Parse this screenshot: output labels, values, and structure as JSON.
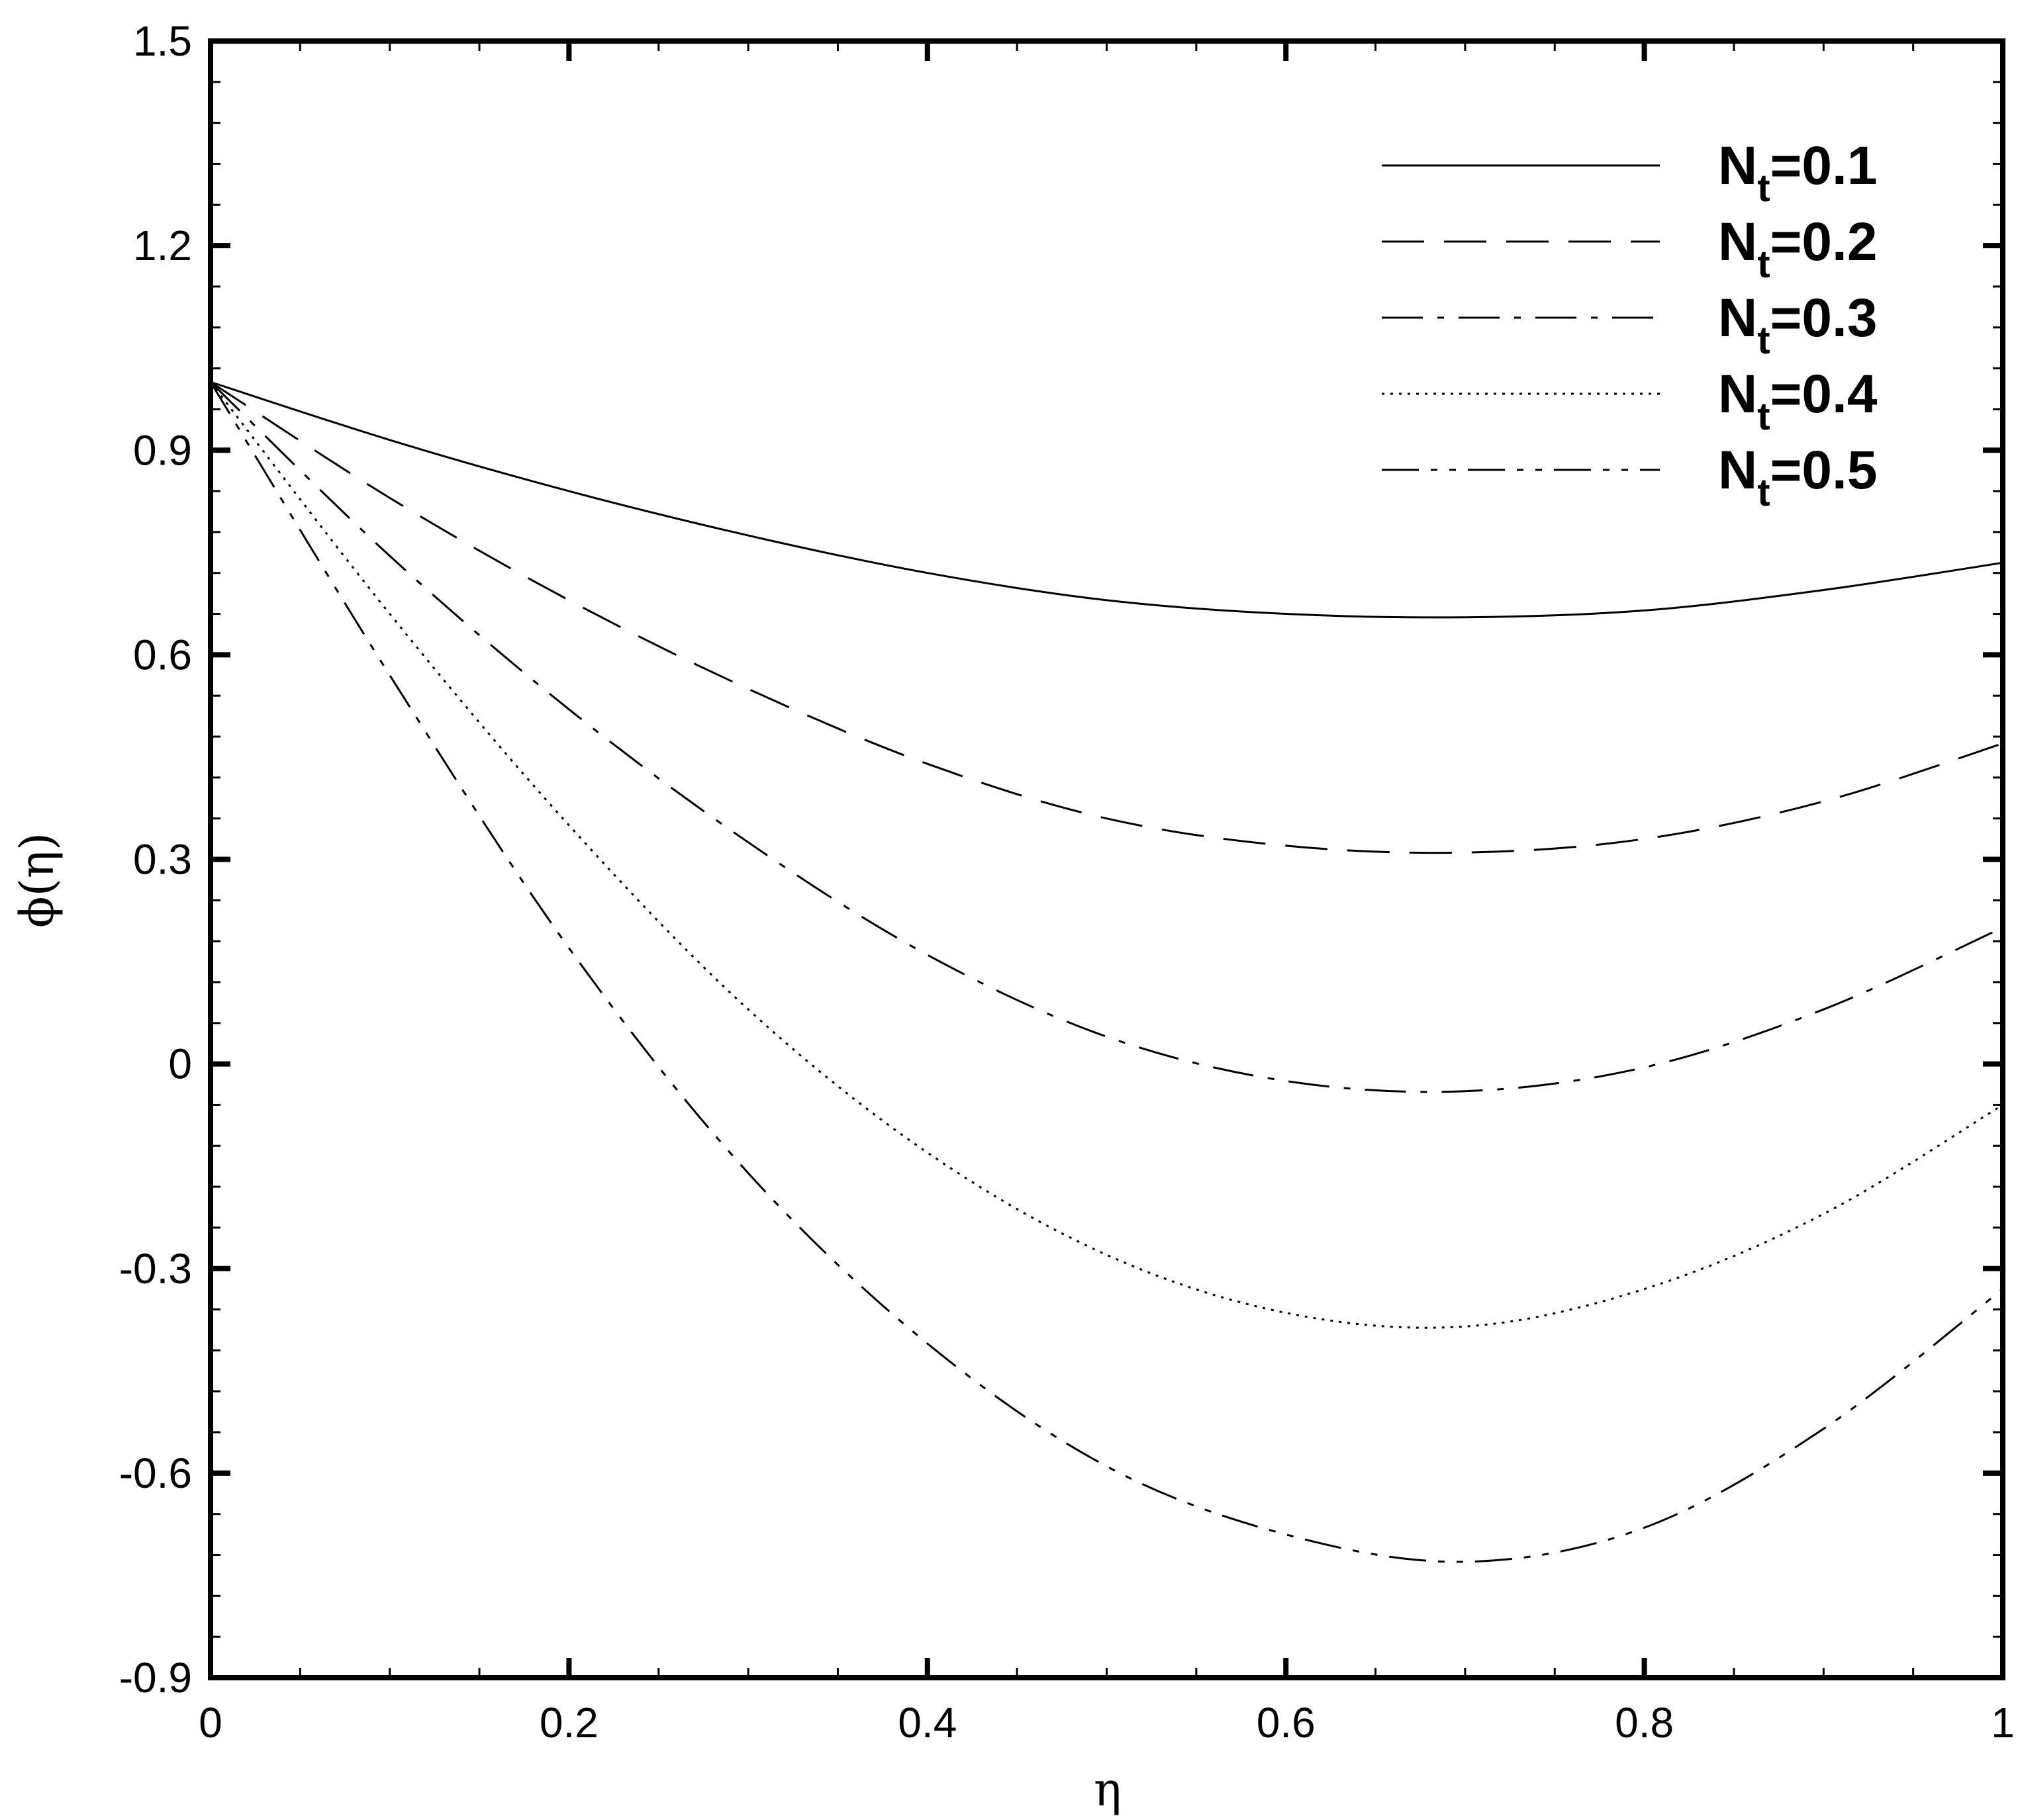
{
  "chart_data": {
    "type": "line",
    "title": "",
    "xlabel": "η",
    "ylabel": "ϕ(η)",
    "xlim": [
      0,
      1
    ],
    "ylim": [
      -0.9,
      1.5
    ],
    "x_ticks": [
      0,
      0.2,
      0.4,
      0.6,
      0.8,
      1
    ],
    "x_tick_labels": [
      "0",
      "0.2",
      "0.4",
      "0.6",
      "0.8",
      "1"
    ],
    "y_ticks": [
      -0.9,
      -0.6,
      -0.3,
      0,
      0.3,
      0.6,
      0.9,
      1.2,
      1.5
    ],
    "y_tick_labels": [
      "-0.9",
      "-0.6",
      "-0.3",
      "0",
      "0.3",
      "0.6",
      "0.9",
      "1.2",
      "1.5"
    ],
    "x_minor_step": 0.05,
    "y_minor_step": 0.06,
    "grid": false,
    "legend_position": "top-right",
    "series": [
      {
        "name": "Nt=0.1",
        "legend_main": "N",
        "legend_sub": "t",
        "legend_value": "=0.1",
        "style": "solid",
        "x": [
          0,
          0.1,
          0.2,
          0.3,
          0.4,
          0.5,
          0.6,
          0.7,
          0.8,
          0.9,
          1.0
        ],
        "y": [
          1.0,
          0.915,
          0.84,
          0.775,
          0.72,
          0.68,
          0.66,
          0.655,
          0.665,
          0.695,
          0.735
        ]
      },
      {
        "name": "Nt=0.2",
        "legend_main": "N",
        "legend_sub": "t",
        "legend_value": "=0.2",
        "style": "dashed",
        "x": [
          0,
          0.1,
          0.2,
          0.3,
          0.4,
          0.5,
          0.6,
          0.7,
          0.8,
          0.9,
          1.0
        ],
        "y": [
          1.0,
          0.83,
          0.68,
          0.55,
          0.44,
          0.36,
          0.32,
          0.31,
          0.33,
          0.385,
          0.47
        ]
      },
      {
        "name": "Nt=0.3",
        "legend_main": "N",
        "legend_sub": "t",
        "legend_value": "=0.3",
        "style": "dash-dot",
        "x": [
          0,
          0.1,
          0.2,
          0.3,
          0.4,
          0.5,
          0.6,
          0.7,
          0.8,
          0.9,
          1.0
        ],
        "y": [
          1.0,
          0.745,
          0.52,
          0.325,
          0.16,
          0.04,
          -0.025,
          -0.04,
          -0.005,
          0.08,
          0.2
        ]
      },
      {
        "name": "Nt=0.4",
        "legend_main": "N",
        "legend_sub": "t",
        "legend_value": "=0.4",
        "style": "dotted",
        "x": [
          0,
          0.1,
          0.2,
          0.3,
          0.4,
          0.5,
          0.6,
          0.7,
          0.8,
          0.9,
          1.0
        ],
        "y": [
          1.0,
          0.66,
          0.35,
          0.08,
          -0.13,
          -0.28,
          -0.365,
          -0.385,
          -0.33,
          -0.22,
          -0.06
        ]
      },
      {
        "name": "Nt=0.5",
        "legend_main": "N",
        "legend_sub": "t",
        "legend_value": "=0.5",
        "style": "dash-dot-dot",
        "x": [
          0,
          0.1,
          0.2,
          0.3,
          0.4,
          0.5,
          0.6,
          0.7,
          0.8,
          0.9,
          1.0
        ],
        "y": [
          1.0,
          0.57,
          0.17,
          -0.16,
          -0.41,
          -0.59,
          -0.69,
          -0.73,
          -0.68,
          -0.535,
          -0.33
        ]
      }
    ]
  }
}
